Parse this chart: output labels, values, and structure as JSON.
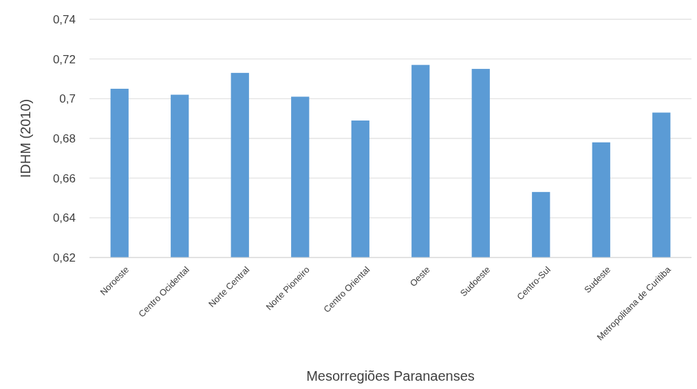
{
  "chart_data": {
    "type": "bar",
    "xlabel": "Mesorregiões Paranaenses",
    "ylabel": "IDHM (2010)",
    "categories": [
      "Noroeste",
      "Centro Ocidental",
      "Norte Central",
      "Norte Pioneiro",
      "Centro Oriental",
      "Oeste",
      "Sudoeste",
      "Centro-Sul",
      "Sudeste",
      "Metropolitana de Curitiba"
    ],
    "values": [
      0.705,
      0.702,
      0.713,
      0.701,
      0.689,
      0.717,
      0.715,
      0.653,
      0.678,
      0.693
    ],
    "color": "#5b9bd5",
    "ylim": [
      0.62,
      0.74
    ],
    "yticks": [
      {
        "value": 0.62,
        "label": "0,62"
      },
      {
        "value": 0.64,
        "label": "0,64"
      },
      {
        "value": 0.66,
        "label": "0,66"
      },
      {
        "value": 0.68,
        "label": "0,68"
      },
      {
        "value": 0.7,
        "label": "0,7"
      },
      {
        "value": 0.72,
        "label": "0,72"
      },
      {
        "value": 0.74,
        "label": "0,74"
      }
    ],
    "grid": "y"
  }
}
